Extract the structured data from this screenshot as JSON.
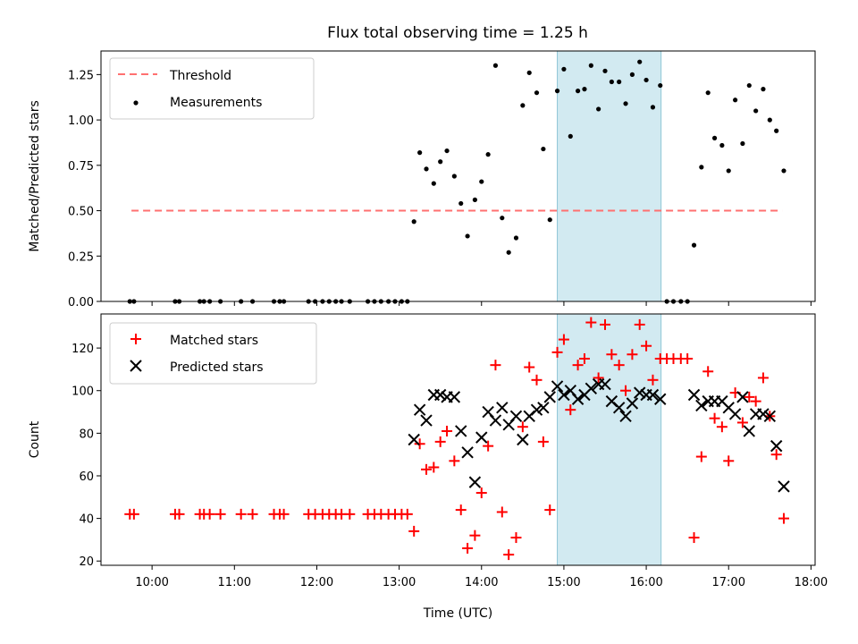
{
  "chart_data": [
    {
      "type": "scatter",
      "title": "Flux total observing time = 1.25 h",
      "xlabel": "",
      "ylabel": "Matched/Predicted stars",
      "x_unit": "hours UTC",
      "xlim": [
        9.38,
        18.05
      ],
      "ylim": [
        0.0,
        1.38
      ],
      "yticks": [
        0.0,
        0.25,
        0.5,
        0.75,
        1.0,
        1.25
      ],
      "ytick_labels": [
        "0.00",
        "0.25",
        "0.50",
        "0.75",
        "1.00",
        "1.25"
      ],
      "legend": {
        "position": "top-left",
        "entries": [
          "Threshold",
          "Measurements"
        ]
      },
      "highlight_span": {
        "start": 14.92,
        "end": 16.18,
        "color": "#add8e6"
      },
      "series": [
        {
          "name": "Threshold",
          "kind": "dashed-line",
          "color": "#ff7070",
          "x": [
            9.75,
            17.65
          ],
          "y": [
            0.5,
            0.5
          ]
        },
        {
          "name": "Measurements",
          "kind": "dot",
          "color": "#000000",
          "x": [
            9.73,
            9.78,
            10.28,
            10.33,
            10.58,
            10.63,
            10.7,
            10.83,
            11.08,
            11.22,
            11.48,
            11.55,
            11.6,
            11.9,
            11.98,
            12.07,
            12.15,
            12.23,
            12.3,
            12.4,
            12.62,
            12.7,
            12.78,
            12.87,
            12.95,
            13.03,
            13.1,
            13.18,
            13.25,
            13.33,
            13.42,
            13.5,
            13.58,
            13.67,
            13.75,
            13.83,
            13.92,
            14.0,
            14.08,
            14.17,
            14.25,
            14.33,
            14.42,
            14.5,
            14.58,
            14.67,
            14.75,
            14.83,
            14.92,
            15.0,
            15.08,
            15.17,
            15.25,
            15.33,
            15.42,
            15.5,
            15.58,
            15.67,
            15.75,
            15.83,
            15.92,
            16.0,
            16.08,
            16.17,
            16.25,
            16.33,
            16.42,
            16.5,
            16.58,
            16.67,
            16.75,
            16.83,
            16.92,
            17.0,
            17.08,
            17.17,
            17.25,
            17.33,
            17.42,
            17.5,
            17.58,
            17.67
          ],
          "y": [
            0,
            0,
            0,
            0,
            0,
            0,
            0,
            0,
            0,
            0,
            0,
            0,
            0,
            0,
            0,
            0,
            0,
            0,
            0,
            0,
            0,
            0,
            0,
            0,
            0,
            0,
            0,
            0.44,
            0.82,
            0.73,
            0.65,
            0.77,
            0.83,
            0.69,
            0.54,
            0.36,
            0.56,
            0.66,
            0.81,
            1.3,
            0.46,
            0.27,
            0.35,
            1.08,
            1.26,
            1.15,
            0.84,
            0.45,
            1.16,
            1.28,
            0.91,
            1.16,
            1.17,
            1.3,
            1.06,
            1.27,
            1.21,
            1.21,
            1.09,
            1.25,
            1.32,
            1.22,
            1.07,
            1.19,
            0,
            0,
            0,
            0,
            0.31,
            0.74,
            1.15,
            0.9,
            0.86,
            0.72,
            1.11,
            0.87,
            1.19,
            1.05,
            1.17,
            1.0,
            0.94,
            0.72
          ]
        }
      ]
    },
    {
      "type": "scatter",
      "title": "",
      "xlabel": "Time (UTC)",
      "ylabel": "Count",
      "x_unit": "hours UTC",
      "xlim": [
        9.38,
        18.05
      ],
      "ylim": [
        18,
        136
      ],
      "yticks": [
        20,
        40,
        60,
        80,
        100,
        120
      ],
      "ytick_labels": [
        "20",
        "40",
        "60",
        "80",
        "100",
        "120"
      ],
      "xticks": [
        10,
        11,
        12,
        13,
        14,
        15,
        16,
        17,
        18
      ],
      "xtick_labels": [
        "10:00",
        "11:00",
        "12:00",
        "13:00",
        "14:00",
        "15:00",
        "16:00",
        "17:00",
        "18:00"
      ],
      "legend": {
        "position": "top-left",
        "entries": [
          "Matched stars",
          "Predicted stars"
        ]
      },
      "highlight_span": {
        "start": 14.92,
        "end": 16.18,
        "color": "#add8e6"
      },
      "series": [
        {
          "name": "Matched stars",
          "kind": "plus",
          "color": "#ff0000",
          "x": [
            9.73,
            9.78,
            10.28,
            10.33,
            10.58,
            10.63,
            10.7,
            10.83,
            11.08,
            11.22,
            11.48,
            11.55,
            11.6,
            11.9,
            11.98,
            12.07,
            12.15,
            12.23,
            12.3,
            12.4,
            12.62,
            12.7,
            12.78,
            12.87,
            12.95,
            13.03,
            13.1,
            13.18,
            13.25,
            13.33,
            13.42,
            13.5,
            13.58,
            13.67,
            13.75,
            13.83,
            13.92,
            14.0,
            14.08,
            14.17,
            14.25,
            14.33,
            14.42,
            14.5,
            14.58,
            14.67,
            14.75,
            14.83,
            14.92,
            15.0,
            15.08,
            15.17,
            15.25,
            15.33,
            15.42,
            15.5,
            15.58,
            15.67,
            15.75,
            15.83,
            15.92,
            16.0,
            16.08,
            16.17,
            16.25,
            16.33,
            16.42,
            16.5,
            16.58,
            16.67,
            16.75,
            16.83,
            16.92,
            17.0,
            17.08,
            17.17,
            17.25,
            17.33,
            17.42,
            17.5,
            17.58,
            17.67
          ],
          "y": [
            42,
            42,
            42,
            42,
            42,
            42,
            42,
            42,
            42,
            42,
            42,
            42,
            42,
            42,
            42,
            42,
            42,
            42,
            42,
            42,
            42,
            42,
            42,
            42,
            42,
            42,
            42,
            34,
            75,
            63,
            64,
            76,
            81,
            67,
            44,
            26,
            32,
            52,
            74,
            112,
            43,
            23,
            31,
            83,
            111,
            105,
            76,
            44,
            118,
            124,
            91,
            112,
            115,
            132,
            106,
            131,
            117,
            112,
            100,
            117,
            131,
            121,
            105,
            115,
            115,
            115,
            115,
            115,
            31,
            69,
            109,
            87,
            83,
            67,
            99,
            85,
            97,
            95,
            106,
            88,
            70,
            40
          ]
        },
        {
          "name": "Predicted stars",
          "kind": "x",
          "color": "#000000",
          "x": [
            13.18,
            13.25,
            13.33,
            13.42,
            13.5,
            13.58,
            13.67,
            13.75,
            13.83,
            13.92,
            14.0,
            14.08,
            14.17,
            14.25,
            14.33,
            14.42,
            14.5,
            14.58,
            14.67,
            14.75,
            14.83,
            14.92,
            15.0,
            15.08,
            15.17,
            15.25,
            15.33,
            15.42,
            15.5,
            15.58,
            15.67,
            15.75,
            15.83,
            15.92,
            16.0,
            16.08,
            16.17,
            16.58,
            16.67,
            16.75,
            16.83,
            16.92,
            17.0,
            17.08,
            17.17,
            17.25,
            17.33,
            17.42,
            17.5,
            17.58,
            17.67
          ],
          "y": [
            77,
            91,
            86,
            98,
            98,
            97,
            97,
            81,
            71,
            57,
            78,
            90,
            86,
            92,
            84,
            88,
            77,
            88,
            91,
            92,
            97,
            102,
            98,
            100,
            96,
            98,
            101,
            103,
            103,
            95,
            92,
            88,
            94,
            99,
            98,
            98,
            96,
            98,
            93,
            95,
            95,
            95,
            92,
            89,
            97,
            81,
            89,
            89,
            88,
            74,
            55
          ]
        }
      ]
    }
  ]
}
